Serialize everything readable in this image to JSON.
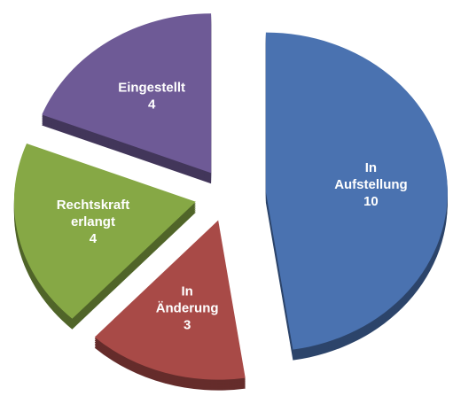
{
  "chart_data": {
    "type": "pie",
    "categories": [
      "In Aufstellung",
      "In Änderung",
      "Rechtskraft erlangt",
      "Eingestellt"
    ],
    "values": [
      10,
      3,
      4,
      4
    ],
    "colors": [
      "#4a72b0",
      "#a84a47",
      "#86a845",
      "#6e5a96"
    ]
  }
}
